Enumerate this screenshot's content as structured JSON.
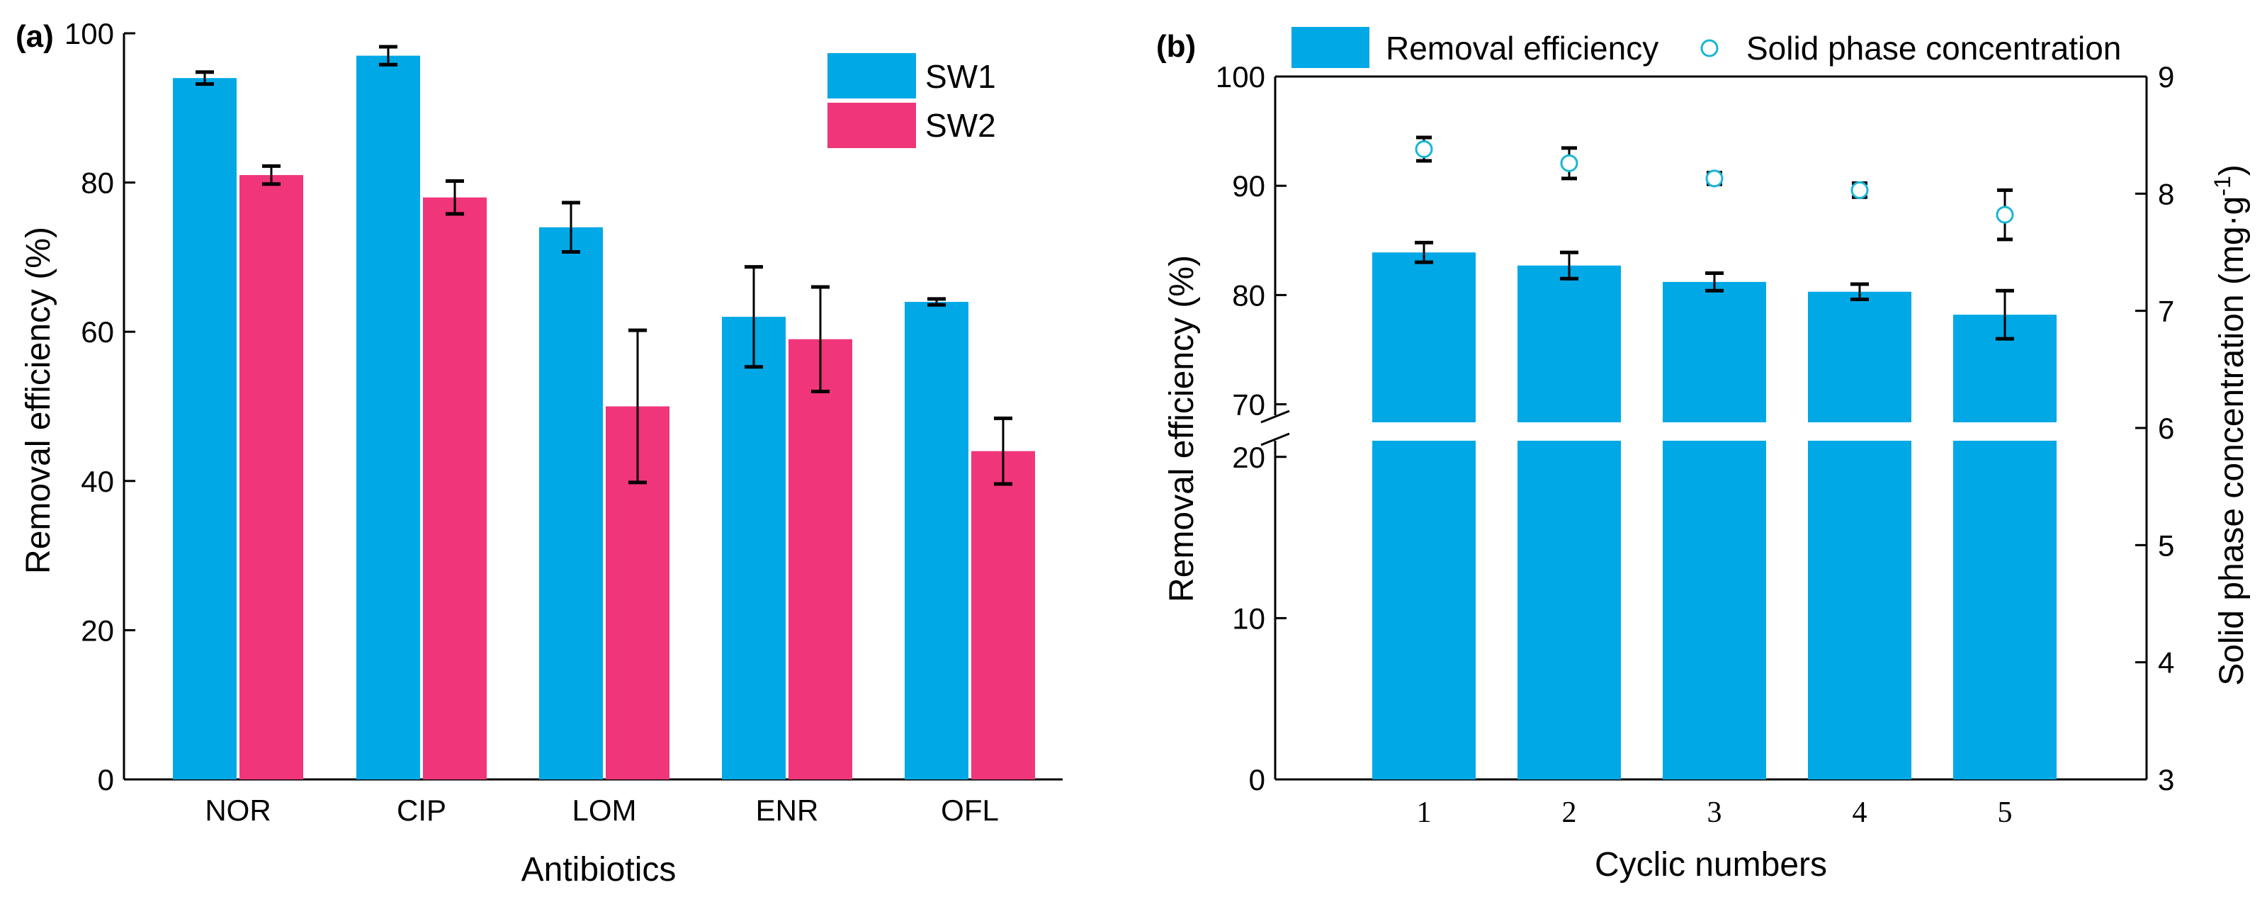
{
  "colors": {
    "sw1": "#00a8e6",
    "sw2": "#f0357a",
    "marker": "#1ab5d6"
  },
  "chart_data": [
    {
      "panel": "(a)",
      "type": "bar",
      "xlabel": "Antibiotics",
      "ylabel": "Removal efficiency (%)",
      "ylim": [
        0,
        100
      ],
      "yticks": [
        "0",
        "20",
        "40",
        "60",
        "80",
        "100"
      ],
      "categories": [
        "NOR",
        "CIP",
        "LOM",
        "ENR",
        "OFL"
      ],
      "series": [
        {
          "name": "SW1",
          "values": [
            94,
            97,
            74,
            62,
            64
          ],
          "errors": [
            0.8,
            1.2,
            3.3,
            6.7,
            0.4
          ]
        },
        {
          "name": "SW2",
          "values": [
            81,
            78,
            50,
            59,
            44
          ],
          "errors": [
            1.2,
            2.2,
            10.2,
            7.0,
            4.4
          ]
        }
      ],
      "legend": [
        "SW1",
        "SW2"
      ]
    },
    {
      "panel": "(b)",
      "type": "bar",
      "xlabel": "Cyclic numbers",
      "ylabel": "Removal efficiency (%)",
      "y2label": "Solid phase concentration (mg·g",
      "y2label_sup": "-1",
      "y2label_end": ")",
      "y_break": [
        21,
        69
      ],
      "yticks_lower": [
        "0",
        "10",
        "20"
      ],
      "yticks_upper": [
        "70",
        "80",
        "90",
        "100"
      ],
      "y2ticks": [
        "3",
        "4",
        "5",
        "6",
        "7",
        "8",
        "9"
      ],
      "y2lim": [
        3,
        9
      ],
      "categories": [
        "1",
        "2",
        "3",
        "4",
        "5"
      ],
      "series": [
        {
          "name": "Removal efficiency",
          "values": [
            83.9,
            82.7,
            81.2,
            80.3,
            78.2
          ],
          "errors": [
            0.9,
            1.2,
            0.8,
            0.7,
            2.2
          ]
        },
        {
          "name": "Solid phase concentration",
          "values": [
            8.38,
            8.26,
            8.13,
            8.03,
            7.82
          ],
          "errors": [
            0.1,
            0.13,
            0.05,
            0.06,
            0.21
          ]
        }
      ],
      "legend": [
        "Removal efficiency",
        "Solid phase concentration"
      ]
    }
  ]
}
